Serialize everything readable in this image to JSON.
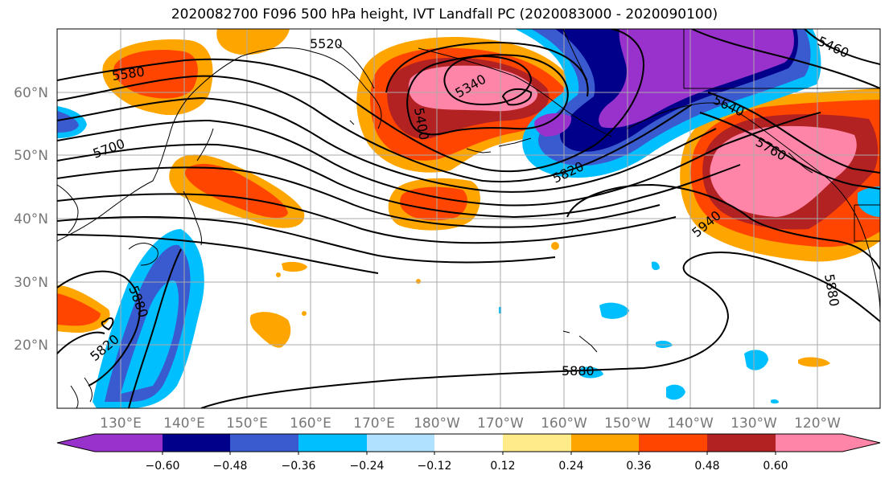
{
  "title": "2020082700 F096 500 hPa height, IVT Landfall PC (2020083000 - 2020090100)",
  "map": {
    "lon_labels": [
      "130°E",
      "140°E",
      "150°E",
      "160°E",
      "170°E",
      "180°W",
      "170°W",
      "160°W",
      "150°W",
      "140°W",
      "130°W",
      "120°W"
    ],
    "lat_labels": [
      "60°N",
      "50°N",
      "40°N",
      "30°N",
      "20°N"
    ]
  },
  "contour_labels": [
    "5520",
    "5460",
    "5580",
    "5340",
    "5400",
    "5700",
    "5640",
    "5820",
    "5760",
    "5940",
    "5880",
    "5880",
    "5820",
    "5880"
  ],
  "colorbar": {
    "ticks": [
      "−0.60",
      "−0.48",
      "−0.36",
      "−0.24",
      "−0.12",
      "0.12",
      "0.24",
      "0.36",
      "0.48",
      "0.60"
    ],
    "colors": [
      "#9932CC",
      "#00008B",
      "#3A5BCF",
      "#00BFFF",
      "#B0E2FF",
      "#FFFFFF",
      "#FFEB8A",
      "#FFA500",
      "#FF4500",
      "#B22222",
      "#FF85A8"
    ]
  }
}
